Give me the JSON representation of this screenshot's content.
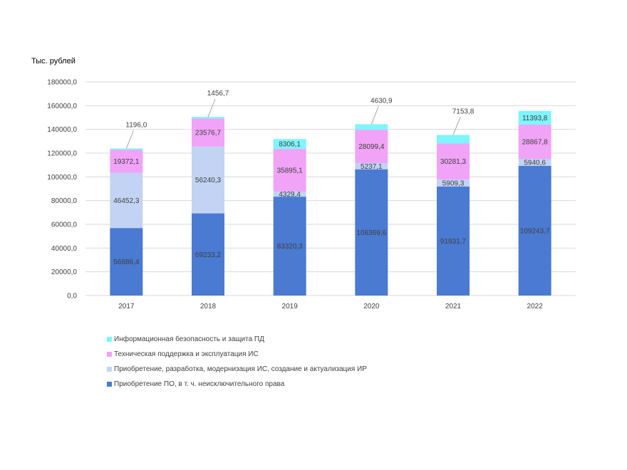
{
  "chart_data": {
    "type": "bar",
    "stacked": true,
    "ylabel": "Тыс. рублей",
    "ylim": [
      0,
      180000
    ],
    "yticks": [
      "0,0",
      "20000,0",
      "40000,0",
      "60000,0",
      "80000,0",
      "100000,0",
      "120000,0",
      "140000,0",
      "160000,0",
      "180000,0"
    ],
    "categories": [
      "2017",
      "2018",
      "2019",
      "2020",
      "2021",
      "2022"
    ],
    "grid": true,
    "legend_position": "bottom-left",
    "series": [
      {
        "name": "Приобретение ПО, в т. ч. неисключительного права",
        "color": "#4a7ad1",
        "values": [
          56886.4,
          69233.2,
          83320.3,
          106369.6,
          91931.7,
          109243.7
        ],
        "labels": [
          "56886,4",
          "69233,2",
          "83320,3",
          "106369,6",
          "91931,7",
          "109243,7"
        ]
      },
      {
        "name": "Приобретение, разработка,  модернизация ИС, создание и актуализация ИР",
        "color": "#c3d3f3",
        "values": [
          46452.3,
          56240.3,
          4329.4,
          5237.1,
          5909.3,
          5940.6
        ],
        "labels": [
          "46452,3",
          "56240,3",
          "4329,4",
          "5237,1",
          "5909,3",
          "5940,6"
        ]
      },
      {
        "name": "Техническая поддержка и эксплуатация ИС",
        "color": "#f0a3f7",
        "values": [
          19372.1,
          23576.7,
          35895.1,
          28099.4,
          30281.3,
          28867.8
        ],
        "labels": [
          "19372,1",
          "23576,7",
          "35895,1",
          "28099,4",
          "30281,3",
          "28867,8"
        ]
      },
      {
        "name": "Информационная безопасность и защита ПД",
        "color": "#7ef4fc",
        "values": [
          1196.0,
          1456.7,
          8306.1,
          4630.9,
          7153.8,
          11393.8
        ],
        "labels": [
          "1196,0",
          "1456,7",
          "8306,1",
          "4630,9",
          "7153,8",
          "11393,8"
        ]
      }
    ]
  }
}
